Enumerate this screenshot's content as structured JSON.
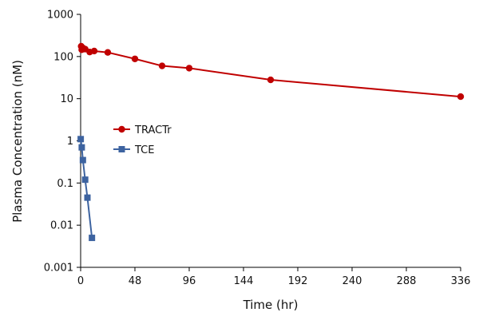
{
  "chart_data": {
    "type": "line",
    "xlabel": "Time (hr)",
    "ylabel": "Plasma Concentration (nM)",
    "x_ticks": [
      "0",
      "48",
      "96",
      "144",
      "192",
      "240",
      "288",
      "336"
    ],
    "y_ticks": [
      "0.001",
      "0.01",
      "0.1",
      "1",
      "10",
      "100",
      "1000"
    ],
    "xlim": [
      0,
      336
    ],
    "ylim": [
      0.001,
      1000
    ],
    "y_scale": "log",
    "grid": false,
    "legend_position": "left-middle",
    "series": [
      {
        "name": "TRACTr",
        "color": "#c00000",
        "marker": "circle",
        "x": [
          0.5,
          1,
          2,
          4,
          8,
          12,
          24,
          48,
          72,
          96,
          168,
          336
        ],
        "y": [
          175,
          145,
          160,
          150,
          128,
          135,
          125,
          88,
          60,
          53,
          28,
          11.2
        ]
      },
      {
        "name": "TCE",
        "color": "#3d63a0",
        "marker": "square",
        "x": [
          0.083,
          1,
          2,
          4,
          6,
          10
        ],
        "y": [
          1.1,
          0.7,
          0.35,
          0.12,
          0.045,
          0.005
        ]
      }
    ]
  }
}
